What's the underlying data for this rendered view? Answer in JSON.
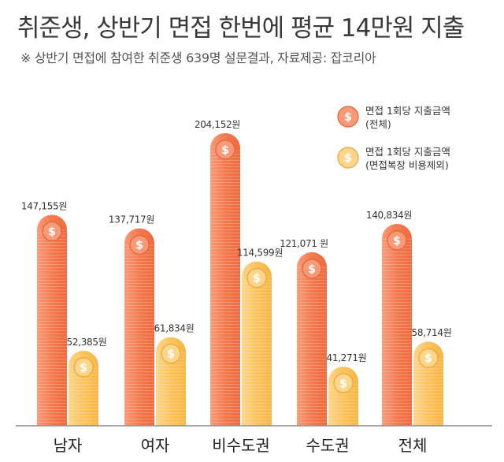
{
  "title": "취준생, 상반기 면접 한번에 평균 14만원 지출",
  "subtitle": "※ 상반기 면접에 참여한 취준생 639명 설문결과,  자료제공: 잡코리아",
  "colors": {
    "total": "#f47a4f",
    "total_light": "#f89a78",
    "excl": "#fcc35e",
    "excl_light": "#fdd58b",
    "axis": "#8a8a8a"
  },
  "legend": [
    {
      "line1": "면접 1회당 지출금액",
      "line2": "(전체)",
      "icon": "dollar-coin-icon"
    },
    {
      "line1": "면접 1회당 지출금액",
      "line2": "(면접복장 비용제외)",
      "icon": "dollar-coin-icon"
    }
  ],
  "chart_data": {
    "type": "bar",
    "categories": [
      "남자",
      "여자",
      "비수도권",
      "수도권",
      "전체"
    ],
    "series": [
      {
        "name": "면접 1회당 지출금액 (전체)",
        "values": [
          147155,
          137717,
          204152,
          121071,
          140834
        ],
        "labels": [
          "147,155원",
          "137,717원",
          "204,152원",
          "121,071 원",
          "140,834원"
        ]
      },
      {
        "name": "면접 1회당 지출금액 (면접복장 비용제외)",
        "values": [
          52385,
          61834,
          114599,
          41271,
          58714
        ],
        "labels": [
          "52,385원",
          "61,834원",
          "114,599원",
          "41,271원",
          "58,714원"
        ]
      }
    ],
    "ylim": [
      0,
      220000
    ],
    "legend_position": "top-right",
    "grid": false
  }
}
